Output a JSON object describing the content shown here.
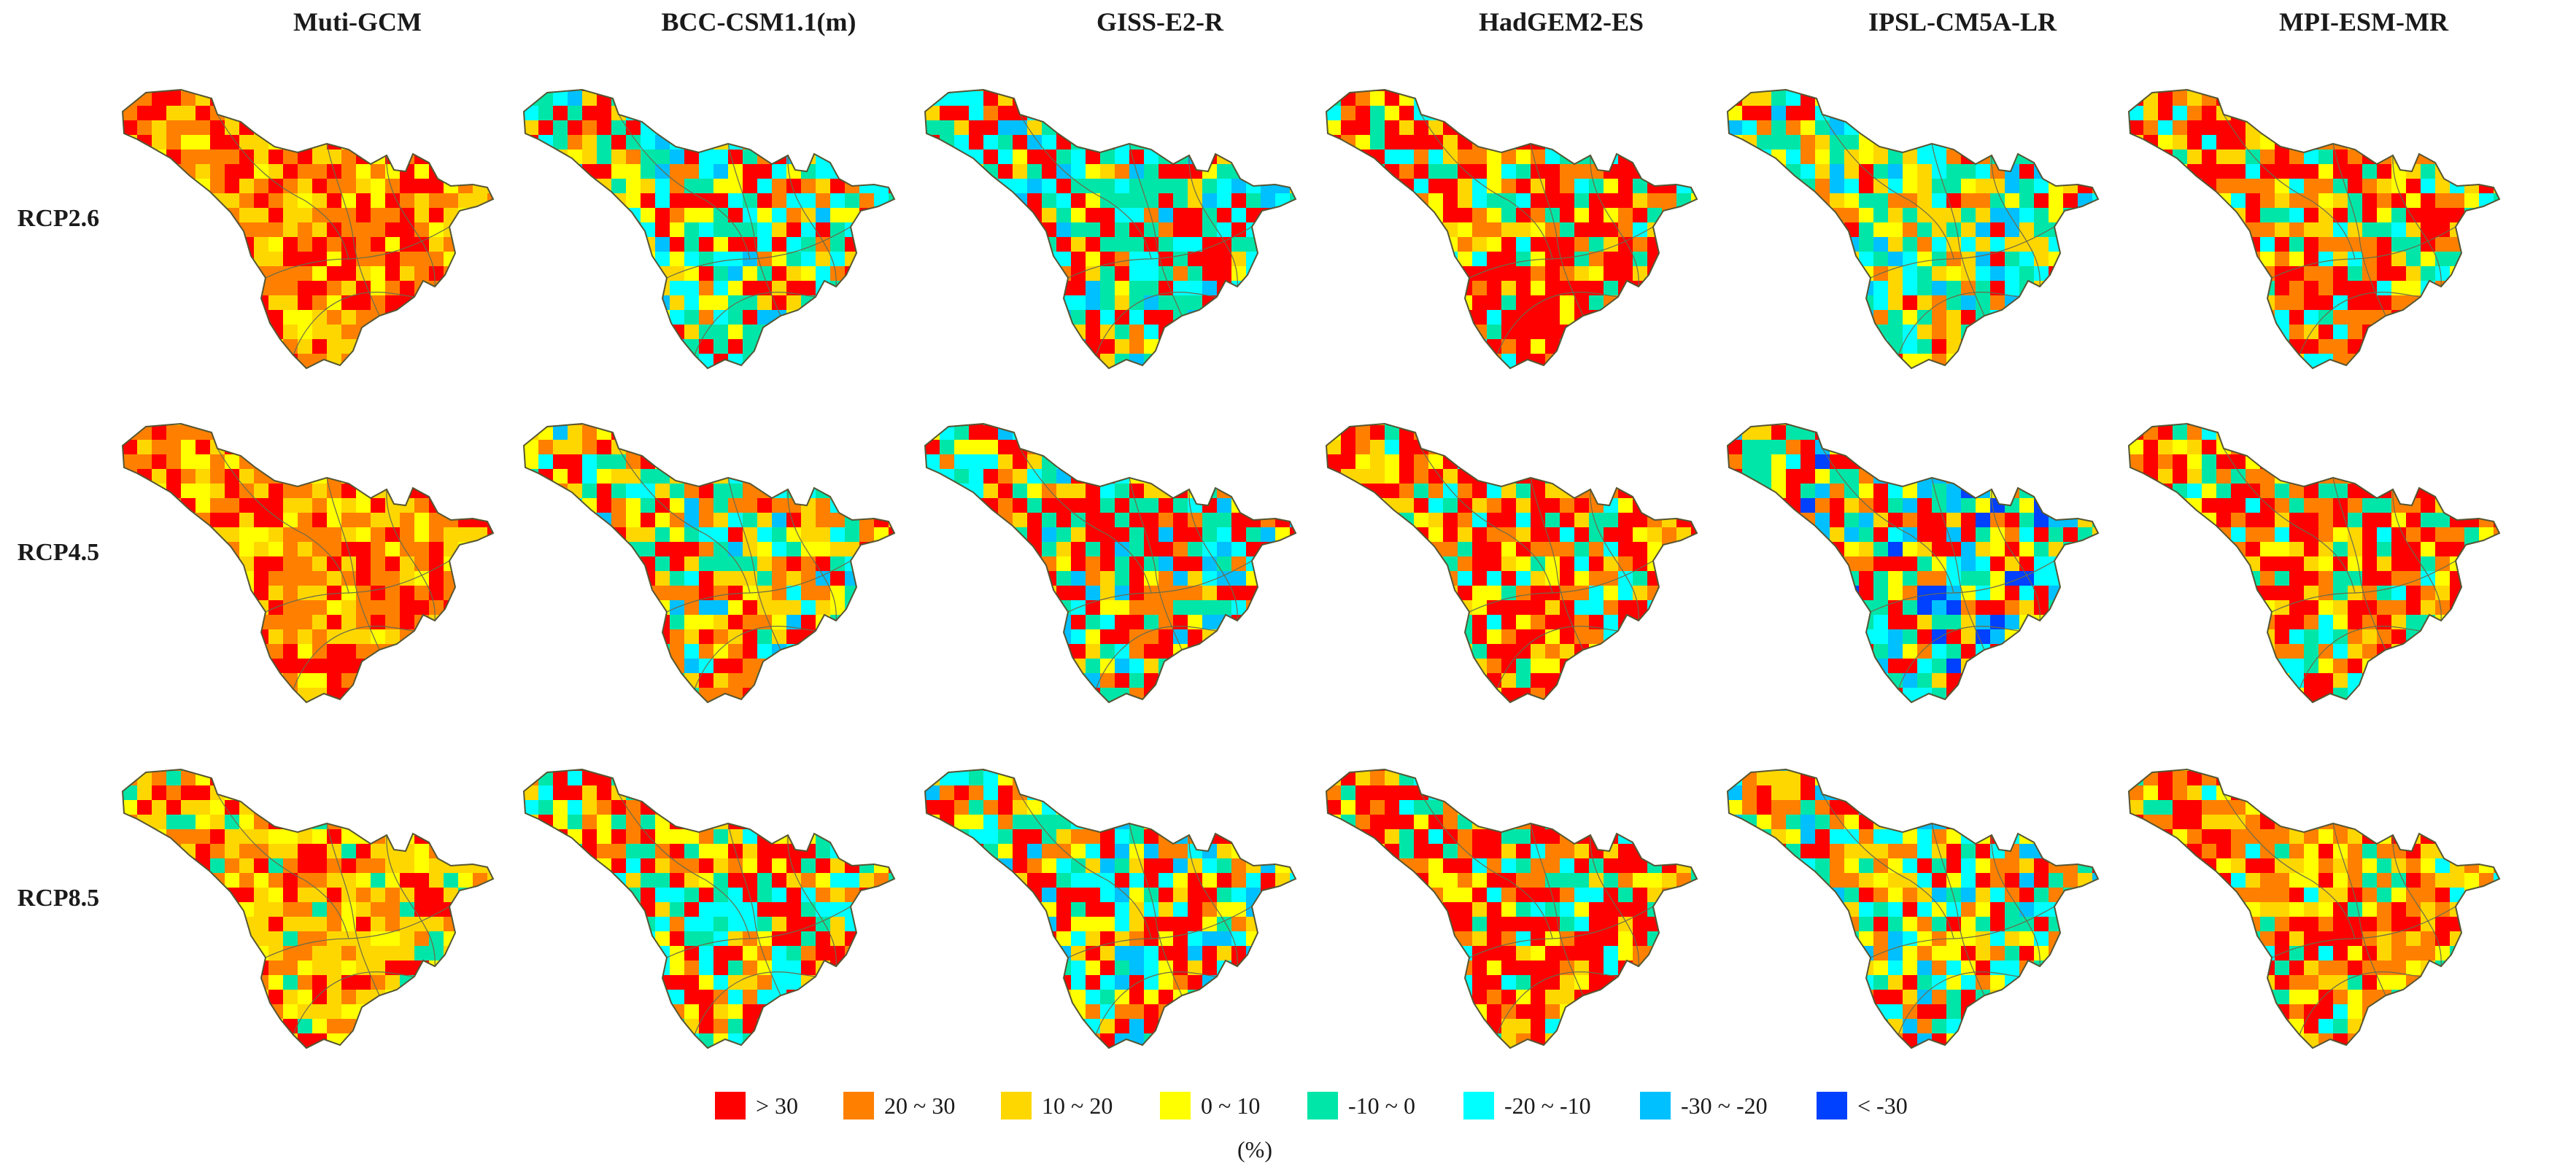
{
  "models": [
    "Muti-GCM",
    "BCC-CSM1.1(m)",
    "GISS-E2-R",
    "HadGEM2-ES",
    "IPSL-CM5A-LR",
    "MPI-ESM-MR"
  ],
  "scenarios": [
    "RCP2.6",
    "RCP4.5",
    "RCP8.5"
  ],
  "legend": {
    "items": [
      {
        "label": "> 30",
        "color": "#ff0000"
      },
      {
        "label": "20 ~ 30",
        "color": "#ff8000"
      },
      {
        "label": "10 ~ 20",
        "color": "#ffd700"
      },
      {
        "label": "0 ~ 10",
        "color": "#ffff00"
      },
      {
        "label": "-10 ~ 0",
        "color": "#00e6a8"
      },
      {
        "label": "-20 ~ -10",
        "color": "#00ffff"
      },
      {
        "label": "-30 ~ -20",
        "color": "#00c0ff"
      },
      {
        "label": "< -30",
        "color": "#0040ff"
      }
    ],
    "unit": "(%)"
  },
  "panel_tendency": [
    [
      [
        0.3,
        0.35,
        0.25,
        0.1,
        0,
        0,
        0,
        0
      ],
      [
        0.25,
        0.1,
        0.1,
        0.1,
        0.2,
        0.2,
        0.05,
        0
      ],
      [
        0.35,
        0.05,
        0.05,
        0.05,
        0.2,
        0.2,
        0.1,
        0
      ],
      [
        0.45,
        0.15,
        0.1,
        0.1,
        0.1,
        0.1,
        0,
        0
      ],
      [
        0.1,
        0.1,
        0.2,
        0.15,
        0.2,
        0.15,
        0.1,
        0
      ],
      [
        0.3,
        0.2,
        0.15,
        0.1,
        0.15,
        0.1,
        0,
        0
      ]
    ],
    [
      [
        0.25,
        0.35,
        0.25,
        0.15,
        0,
        0,
        0,
        0
      ],
      [
        0.2,
        0.2,
        0.2,
        0.1,
        0.15,
        0.1,
        0.05,
        0
      ],
      [
        0.35,
        0.1,
        0.1,
        0.1,
        0.15,
        0.1,
        0.1,
        0
      ],
      [
        0.4,
        0.2,
        0.1,
        0.1,
        0.1,
        0.1,
        0,
        0
      ],
      [
        0.2,
        0.1,
        0.1,
        0.1,
        0.2,
        0.1,
        0.1,
        0.1
      ],
      [
        0.35,
        0.2,
        0.1,
        0.1,
        0.15,
        0.1,
        0,
        0
      ]
    ],
    [
      [
        0.2,
        0.2,
        0.3,
        0.2,
        0.1,
        0,
        0,
        0
      ],
      [
        0.3,
        0.1,
        0.1,
        0.1,
        0.2,
        0.2,
        0,
        0
      ],
      [
        0.3,
        0.1,
        0.1,
        0.1,
        0.15,
        0.15,
        0.1,
        0
      ],
      [
        0.4,
        0.2,
        0.1,
        0.1,
        0.1,
        0.1,
        0,
        0
      ],
      [
        0.2,
        0.2,
        0.1,
        0.1,
        0.15,
        0.15,
        0.1,
        0
      ],
      [
        0.3,
        0.3,
        0.15,
        0.1,
        0.1,
        0.05,
        0,
        0
      ]
    ]
  ]
}
